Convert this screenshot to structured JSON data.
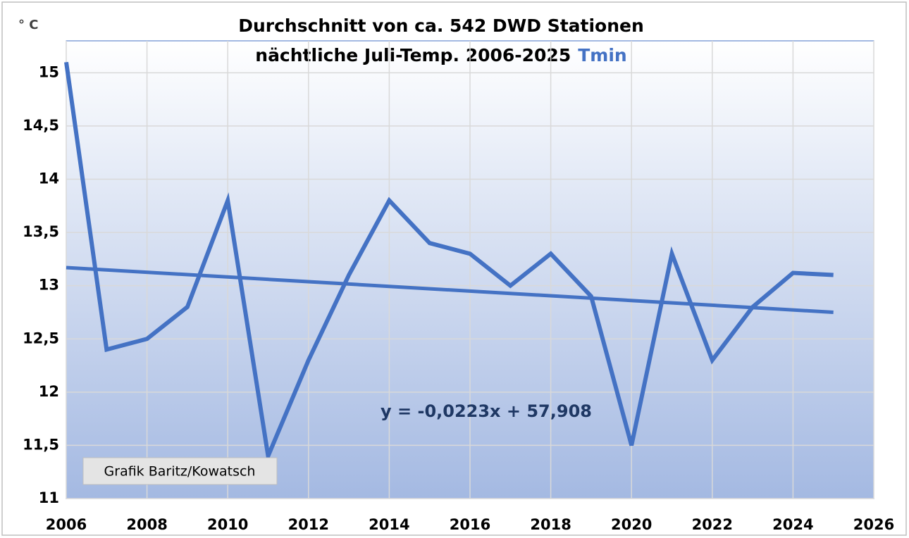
{
  "chart_data": {
    "type": "line",
    "title": "Durchschnitt von ca. 542 DWD Stationen",
    "subtitle": "nächtliche Juli-Temp. 2006-2025",
    "y_unit": "° C",
    "x": [
      2006,
      2007,
      2008,
      2009,
      2010,
      2011,
      2012,
      2013,
      2014,
      2015,
      2016,
      2017,
      2018,
      2019,
      2020,
      2021,
      2022,
      2023,
      2024,
      2025
    ],
    "series": [
      {
        "name": "Tmin",
        "color": "#4472c4",
        "values": [
          15.1,
          12.4,
          12.5,
          12.8,
          13.8,
          11.4,
          12.3,
          13.1,
          13.8,
          13.4,
          13.3,
          13.0,
          13.3,
          12.9,
          11.5,
          13.3,
          12.3,
          12.8,
          13.12,
          13.1
        ]
      }
    ],
    "trendline": {
      "x": [
        2006,
        2025
      ],
      "values": [
        13.17,
        12.75
      ],
      "color": "#4472c4"
    },
    "annotations": [
      "y = -0,0223x + 57,908",
      "Grafik Baritz/Kowatsch"
    ],
    "xlim": [
      2006,
      2026
    ],
    "xticks": [
      2006,
      2008,
      2010,
      2012,
      2014,
      2016,
      2018,
      2020,
      2022,
      2024,
      2026
    ],
    "ylim": [
      11,
      15.3
    ],
    "yticks": [
      11,
      {
        "value": 11.5,
        "label": "11,5"
      },
      12,
      {
        "value": 12.5,
        "label": "12,5"
      },
      13,
      {
        "value": 13.5,
        "label": "13,5"
      },
      14,
      {
        "value": 14.5,
        "label": "14,5"
      },
      15
    ],
    "grid": true
  }
}
